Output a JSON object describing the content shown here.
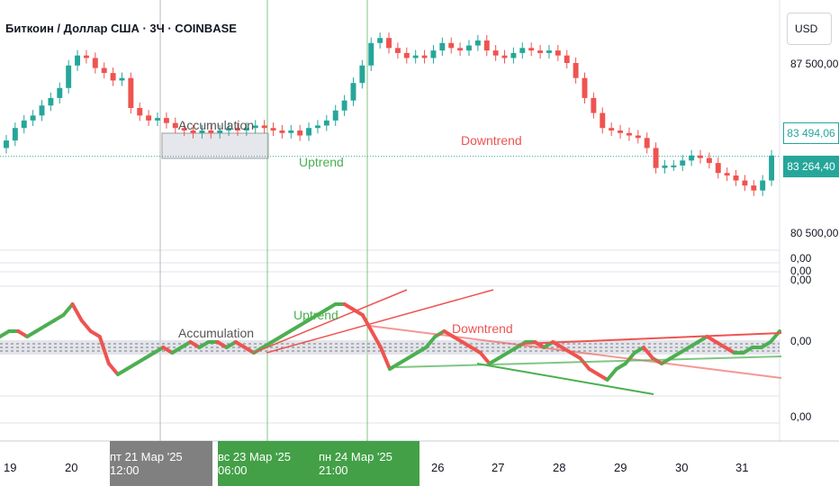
{
  "header": {
    "title": "Биткоин / Доллар США · 3Ч · COINBASE",
    "currency": "USD"
  },
  "price_axis": {
    "labels": [
      "87 500,00",
      "80 500,00",
      "0,00",
      "0,00",
      "0,00",
      "0,00"
    ],
    "marker_upper": "83 494,06",
    "marker_current": "83 264,40"
  },
  "time_axis": {
    "labels": [
      "19",
      "20",
      "26",
      "27",
      "28",
      "29",
      "30",
      "31"
    ],
    "crosshair_start": "пт 21 Мар '25   12:00",
    "range_start": "вс 23 Мар '25   06:00",
    "range_end": "пн 24 Мар '25   21:00"
  },
  "annotations": {
    "price_accumulation": "Accumulation",
    "price_uptrend": "Uptrend",
    "price_downtrend": "Downtrend",
    "osc_accumulation": "Accumulation",
    "osc_uptrend": "Uptrend",
    "osc_downtrend": "Downtrend"
  },
  "colors": {
    "up": "#26a69a",
    "up_green": "#4caf50",
    "down": "#ef5350",
    "grid": "#e0e3eb",
    "range": "#43a047",
    "crosshair_bg": "#808080"
  },
  "chart_data": {
    "type": "candlestick",
    "title": "Биткоин / Доллар США · 3Ч · COINBASE",
    "interval": "3H",
    "exchange": "COINBASE",
    "currency": "USD",
    "price_close": [
      83900,
      84400,
      84700,
      84900,
      85300,
      85600,
      86000,
      86900,
      87300,
      87200,
      86800,
      86600,
      86300,
      86400,
      85200,
      84900,
      84700,
      84800,
      84600,
      84400,
      84300,
      84200,
      84300,
      84200,
      84300,
      84400,
      84300,
      84400,
      84500,
      84400,
      84300,
      84200,
      84300,
      84100,
      84400,
      84500,
      84700,
      85100,
      85500,
      86200,
      86900,
      87800,
      88000,
      87600,
      87400,
      87200,
      87300,
      87200,
      87500,
      87800,
      87600,
      87500,
      87700,
      87900,
      87500,
      87300,
      87200,
      87400,
      87600,
      87500,
      87400,
      87500,
      87300,
      87000,
      86400,
      85600,
      85000,
      84400,
      84300,
      84200,
      84100,
      84000,
      83600,
      82800,
      82900,
      82900,
      83100,
      83300,
      83200,
      83000,
      82600,
      82500,
      82300,
      82100,
      81900,
      82300,
      83300
    ],
    "current_price": 83264.4,
    "upper_marker": 83494.06,
    "annotations": [
      "Accumulation",
      "Uptrend",
      "Downtrend"
    ],
    "oscillator": {
      "zero_level": 0.0,
      "values": [
        2,
        3,
        3,
        2,
        3,
        4,
        5,
        6,
        8,
        5,
        3,
        2,
        -3,
        -5,
        -4,
        -3,
        -2,
        -1,
        0,
        -1,
        0,
        1,
        0,
        1,
        1,
        0,
        1,
        0,
        -1,
        0,
        1,
        2,
        3,
        4,
        5,
        6,
        7,
        8,
        8,
        7,
        6,
        3,
        0,
        -4,
        -3,
        -2,
        -1,
        0,
        2,
        3,
        2,
        1,
        0,
        -1,
        -3,
        -2,
        -1,
        0,
        1,
        1,
        0,
        1,
        0,
        -1,
        -2,
        -4,
        -5,
        -6,
        -4,
        -3,
        -1,
        0,
        -2,
        -3,
        -2,
        -1,
        0,
        1,
        2,
        1,
        0,
        -1,
        -1,
        0,
        0,
        1,
        3
      ]
    }
  }
}
